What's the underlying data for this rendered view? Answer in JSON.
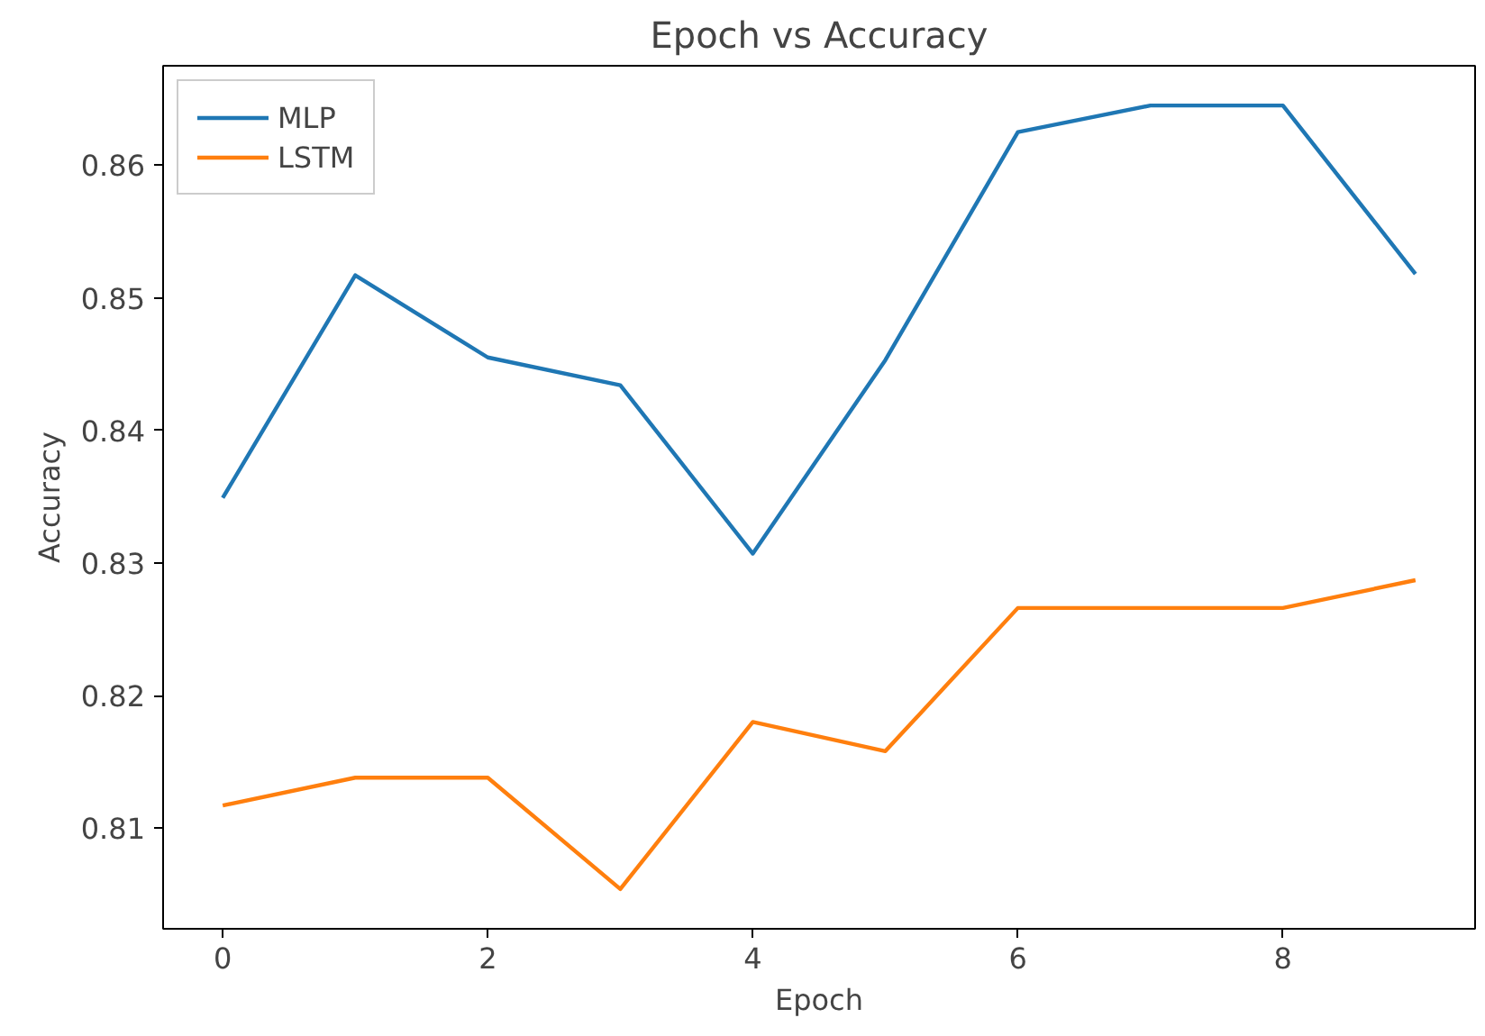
{
  "chart_data": {
    "type": "line",
    "title": "Epoch vs Accuracy",
    "xlabel": "Epoch",
    "ylabel": "Accuracy",
    "x": [
      0,
      1,
      2,
      3,
      4,
      5,
      6,
      7,
      8,
      9
    ],
    "series": [
      {
        "name": "MLP",
        "color": "#1f77b4",
        "values": [
          0.8349,
          0.8517,
          0.8455,
          0.8434,
          0.8307,
          0.8453,
          0.8625,
          0.8645,
          0.8645,
          0.8518
        ]
      },
      {
        "name": "LSTM",
        "color": "#ff7f0e",
        "values": [
          0.8117,
          0.8138,
          0.8138,
          0.8054,
          0.818,
          0.8158,
          0.8266,
          0.8266,
          0.8266,
          0.8287
        ]
      }
    ],
    "xlim": [
      -0.45,
      9.45
    ],
    "ylim": [
      0.8024,
      0.8675
    ],
    "xticks": [
      0,
      2,
      4,
      6,
      8
    ],
    "yticks": [
      0.81,
      0.82,
      0.83,
      0.84,
      0.85,
      0.86
    ],
    "legend": "top left",
    "grid": false
  }
}
